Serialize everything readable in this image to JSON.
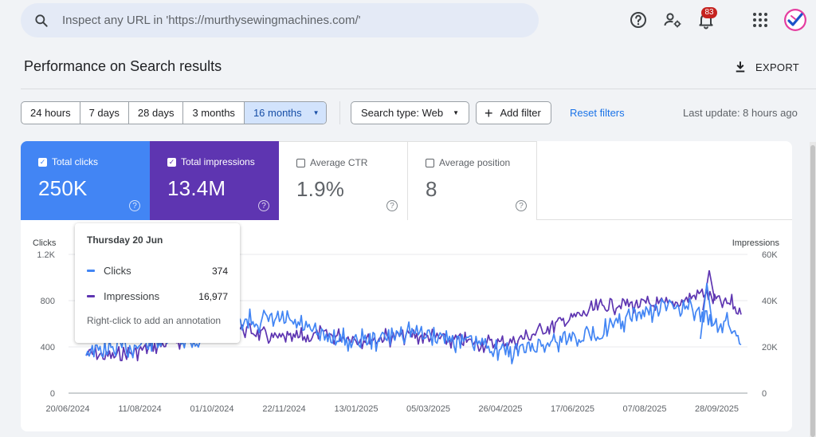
{
  "header": {
    "search_placeholder": "Inspect any URL in 'https://murthysewingmachines.com/'",
    "notifications_count": "83",
    "icons": [
      "search-icon",
      "help-icon",
      "user-settings-icon",
      "notification-icon",
      "apps-icon",
      "avatar"
    ]
  },
  "page": {
    "title": "Performance on Search results",
    "export_label": "EXPORT"
  },
  "filters": {
    "ranges": [
      "24 hours",
      "7 days",
      "28 days",
      "3 months",
      "16 months"
    ],
    "selected_range": "16 months",
    "search_type": "Search type: Web",
    "add_filter": "Add filter",
    "reset": "Reset filters",
    "last_update": "Last update: 8 hours ago"
  },
  "metrics": [
    {
      "label": "Total clicks",
      "value": "250K",
      "checked": true,
      "color": "#4285f4"
    },
    {
      "label": "Total impressions",
      "value": "13.4M",
      "checked": true,
      "color": "#5e35b1"
    },
    {
      "label": "Average CTR",
      "value": "1.9%",
      "checked": false
    },
    {
      "label": "Average position",
      "value": "8",
      "checked": false
    }
  ],
  "tooltip": {
    "date": "Thursday 20 Jun",
    "rows": [
      {
        "name": "Clicks",
        "value": "374",
        "color": "#4285f4"
      },
      {
        "name": "Impressions",
        "value": "16,977",
        "color": "#5e35b1"
      }
    ],
    "hint": "Right-click to add an annotation"
  },
  "chart_data": {
    "type": "line",
    "y_left_label": "Clicks",
    "y_right_label": "Impressions",
    "y_left_ticks": [
      "0",
      "400",
      "800",
      "1.2K"
    ],
    "y_right_ticks": [
      "0",
      "20K",
      "40K",
      "60K"
    ],
    "ylim_left": [
      0,
      1200
    ],
    "ylim_right": [
      0,
      60000
    ],
    "x_ticks": [
      "20/06/2024",
      "11/08/2024",
      "01/10/2024",
      "22/11/2024",
      "13/01/2025",
      "05/03/2025",
      "26/04/2025",
      "17/06/2025",
      "07/08/2025",
      "28/09/2025"
    ],
    "x_range": [
      "20/06/2024",
      "22/10/2025"
    ],
    "grid": "horizontal",
    "series": [
      {
        "name": "Clicks",
        "color": "#4285f4",
        "values": [
          374,
          360,
          360,
          380,
          395,
          400,
          425,
          445,
          445,
          470,
          480,
          440,
          450,
          540,
          560,
          580,
          600,
          610,
          625,
          625,
          640,
          620,
          610,
          580,
          530,
          500,
          480,
          470,
          450,
          450,
          470,
          470,
          480,
          520,
          540,
          530,
          520,
          510,
          490,
          470,
          450,
          440,
          430,
          415,
          395,
          350,
          365,
          385,
          410,
          425,
          450,
          470,
          490,
          500,
          510,
          530,
          560,
          600,
          640,
          680,
          700,
          720,
          750,
          760,
          740,
          700,
          670,
          620,
          610,
          580,
          420
        ]
      },
      {
        "name": "Impressions",
        "color": "#5e35b1",
        "values": [
          16977,
          16500,
          16000,
          15800,
          16500,
          17500,
          19000,
          20000,
          21000,
          22000,
          23000,
          24000,
          26000,
          27000,
          28000,
          28500,
          28000,
          27500,
          26500,
          25000,
          24000,
          23500,
          23500,
          24000,
          24500,
          25500,
          25000,
          24500,
          24000,
          23500,
          23500,
          23500,
          24000,
          24500,
          25000,
          25000,
          24500,
          24000,
          23500,
          23000,
          22500,
          22000,
          21500,
          21500,
          21500,
          22000,
          23000,
          24000,
          26000,
          28000,
          29500,
          31000,
          32500,
          34000,
          35500,
          37000,
          38000,
          38500,
          38500,
          38500,
          38000,
          38000,
          38000,
          39000,
          40000,
          42000,
          44000,
          41000,
          39000,
          38500,
          34000
        ]
      }
    ]
  }
}
